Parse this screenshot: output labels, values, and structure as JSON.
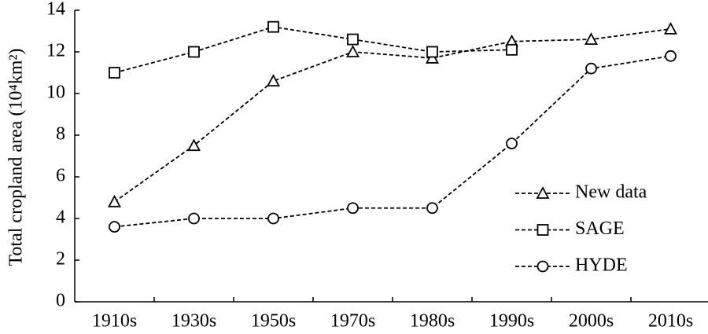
{
  "chart_data": {
    "type": "line",
    "y_label": "Total cropland area (10⁴km²)",
    "categories": [
      "1910s",
      "1930s",
      "1950s",
      "1970s",
      "1980s",
      "1990s",
      "2000s",
      "2010s"
    ],
    "series": [
      {
        "name": "New data",
        "color": "#000000",
        "marker": "triangle",
        "values": [
          4.8,
          7.5,
          10.6,
          12.0,
          11.7,
          12.5,
          12.6,
          13.1
        ]
      },
      {
        "name": "SAGE",
        "color": "#000000",
        "marker": "square",
        "values": [
          11.0,
          12.0,
          13.2,
          12.6,
          12.0,
          12.1,
          null,
          null
        ]
      },
      {
        "name": "HYDE",
        "color": "#000000",
        "marker": "circle",
        "values": [
          3.6,
          4.0,
          4.0,
          4.5,
          4.5,
          7.6,
          11.2,
          11.8
        ]
      }
    ],
    "ylim": [
      0,
      14
    ],
    "yticks": [
      0,
      2,
      4,
      6,
      8,
      10,
      12,
      14
    ],
    "grid": false,
    "legend": "lower right"
  }
}
